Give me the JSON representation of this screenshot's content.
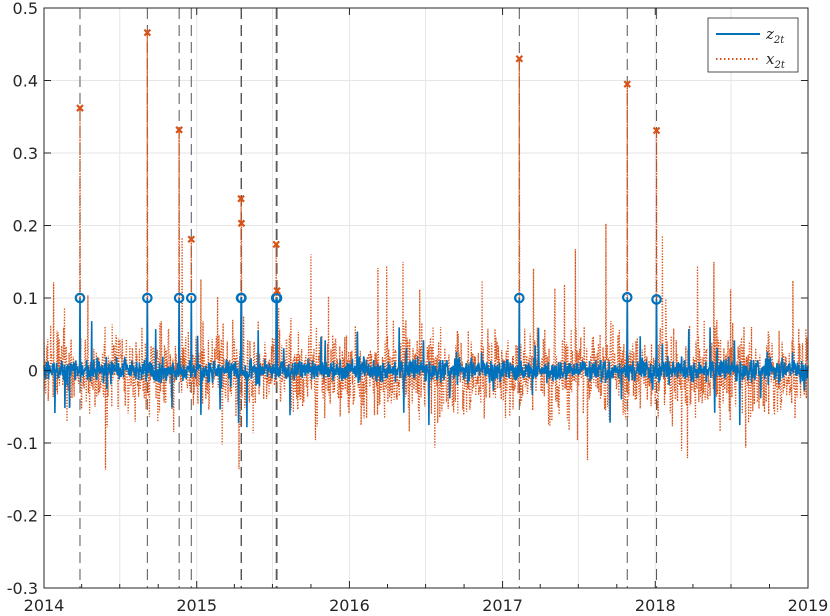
{
  "chart_data": {
    "type": "line",
    "grid": true,
    "legend_position": "top-right",
    "x_range": [
      "2014-01-01",
      "2019-01-01"
    ],
    "ylim": [
      -0.3,
      0.5
    ],
    "x_ticks": [
      {
        "date": "2014-01-01",
        "label": "2014"
      },
      {
        "date": "2015-01-01",
        "label": "2015"
      },
      {
        "date": "2016-01-01",
        "label": "2016"
      },
      {
        "date": "2017-01-01",
        "label": "2017"
      },
      {
        "date": "2018-01-01",
        "label": "2018"
      },
      {
        "date": "2019-01-01",
        "label": "2019"
      }
    ],
    "y_ticks": [
      {
        "value": -0.3,
        "label": "-0.3"
      },
      {
        "value": -0.2,
        "label": "-0.2"
      },
      {
        "value": -0.1,
        "label": "-0.1"
      },
      {
        "value": 0,
        "label": "0"
      },
      {
        "value": 0.1,
        "label": "0.1"
      },
      {
        "value": 0.2,
        "label": "0.2"
      },
      {
        "value": 0.3,
        "label": "0.3"
      },
      {
        "value": 0.4,
        "label": "0.4"
      },
      {
        "value": 0.5,
        "label": "0.5"
      }
    ],
    "series": [
      {
        "name": "z_2t",
        "legend_main": "z",
        "legend_sub": "2t",
        "color": "#0072BD",
        "style": "solid"
      },
      {
        "name": "x_2t",
        "legend_main": "x",
        "legend_sub": "2t",
        "color": "#D95319",
        "style": "dotted"
      }
    ],
    "events": [
      {
        "date": "2014-03-28",
        "x_peak": 0.362,
        "z_peak": 0.1
      },
      {
        "date": "2014-09-05",
        "x_peak": 0.466,
        "z_peak": 0.1
      },
      {
        "date": "2014-11-20",
        "x_peak": 0.332,
        "z_peak": 0.1
      },
      {
        "date": "2014-12-19",
        "x_peak": 0.181,
        "z_peak": 0.1
      },
      {
        "date": "2015-04-17",
        "x_peak": 0.237,
        "z_peak": 0.1
      },
      {
        "date": "2015-04-18",
        "x_peak": 0.203,
        "z_peak": 0.1
      },
      {
        "date": "2015-07-10",
        "x_peak": 0.174,
        "z_peak": 0.1
      },
      {
        "date": "2015-07-12",
        "x_peak": 0.11,
        "z_peak": 0.1
      },
      {
        "date": "2017-02-10",
        "x_peak": 0.43,
        "z_peak": 0.1
      },
      {
        "date": "2017-10-26",
        "x_peak": 0.395,
        "z_peak": 0.101
      },
      {
        "date": "2018-01-04",
        "x_peak": 0.331,
        "z_peak": 0.098
      }
    ]
  }
}
